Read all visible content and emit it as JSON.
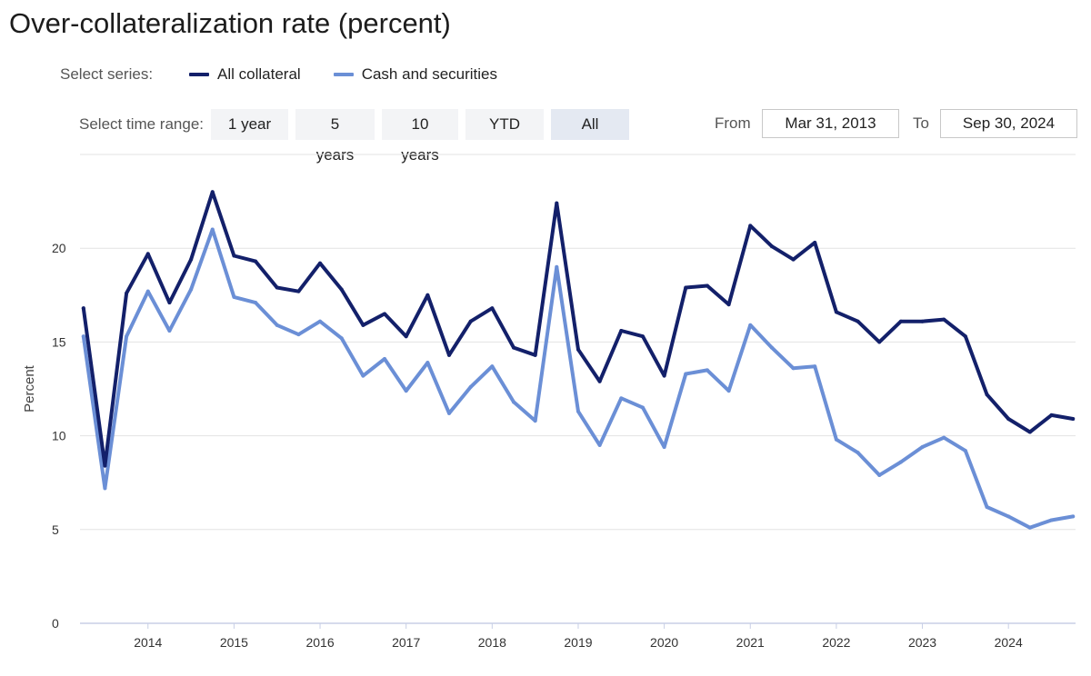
{
  "chart_data": {
    "type": "line",
    "title": "Over-collateralization rate (percent)",
    "xlabel": "",
    "ylabel": "Percent",
    "xlim": [
      2013.21,
      2024.78
    ],
    "ylim": [
      0,
      25
    ],
    "y_ticks": [
      "0",
      "5",
      "10",
      "15",
      "20"
    ],
    "x_ticks": [
      "2014",
      "2015",
      "2016",
      "2017",
      "2018",
      "2019",
      "2020",
      "2021",
      "2022",
      "2023",
      "2024"
    ],
    "x": [
      2013.25,
      2013.5,
      2013.75,
      2014.0,
      2014.25,
      2014.5,
      2014.75,
      2015.0,
      2015.25,
      2015.5,
      2015.75,
      2016.0,
      2016.25,
      2016.5,
      2016.75,
      2017.0,
      2017.25,
      2017.5,
      2017.75,
      2018.0,
      2018.25,
      2018.5,
      2018.75,
      2019.0,
      2019.25,
      2019.5,
      2019.75,
      2020.0,
      2020.25,
      2020.5,
      2020.75,
      2021.0,
      2021.25,
      2021.5,
      2021.75,
      2022.0,
      2022.25,
      2022.5,
      2022.75,
      2023.0,
      2023.25,
      2023.5,
      2023.75,
      2024.0,
      2024.25,
      2024.5,
      2024.75
    ],
    "series": [
      {
        "name": "All collateral",
        "color": "#13206a",
        "values": [
          16.8,
          8.4,
          17.6,
          19.7,
          17.1,
          19.4,
          23.0,
          19.6,
          19.3,
          17.9,
          17.7,
          19.2,
          17.8,
          15.9,
          16.5,
          15.3,
          17.5,
          14.3,
          16.1,
          16.8,
          14.7,
          14.3,
          22.4,
          14.6,
          12.9,
          15.6,
          15.3,
          13.2,
          17.9,
          18.0,
          17.0,
          21.2,
          20.1,
          19.4,
          20.3,
          16.6,
          16.1,
          15.0,
          16.1,
          16.1,
          16.2,
          15.3,
          12.2,
          10.9,
          10.2,
          11.1,
          10.9
        ]
      },
      {
        "name": "Cash and securities",
        "color": "#6b8fd6",
        "values": [
          15.3,
          7.2,
          15.3,
          17.7,
          15.6,
          17.8,
          21.0,
          17.4,
          17.1,
          15.9,
          15.4,
          16.1,
          15.2,
          13.2,
          14.1,
          12.4,
          13.9,
          11.2,
          12.6,
          13.7,
          11.8,
          10.8,
          19.0,
          11.3,
          9.5,
          12.0,
          11.5,
          9.4,
          13.3,
          13.5,
          12.4,
          15.9,
          14.7,
          13.6,
          13.7,
          9.8,
          9.1,
          7.9,
          8.6,
          9.4,
          9.9,
          9.2,
          6.2,
          5.7,
          5.1,
          5.5,
          5.7
        ]
      }
    ]
  },
  "controls": {
    "select_series_label": "Select series:",
    "select_range_label": "Select time range:",
    "range_buttons": [
      "1 year",
      "5 years",
      "10 years",
      "YTD",
      "All"
    ],
    "selected_range": "All",
    "from_label": "From",
    "from_value": "Mar 31, 2013",
    "to_label": "To",
    "to_value": "Sep 30, 2024"
  }
}
